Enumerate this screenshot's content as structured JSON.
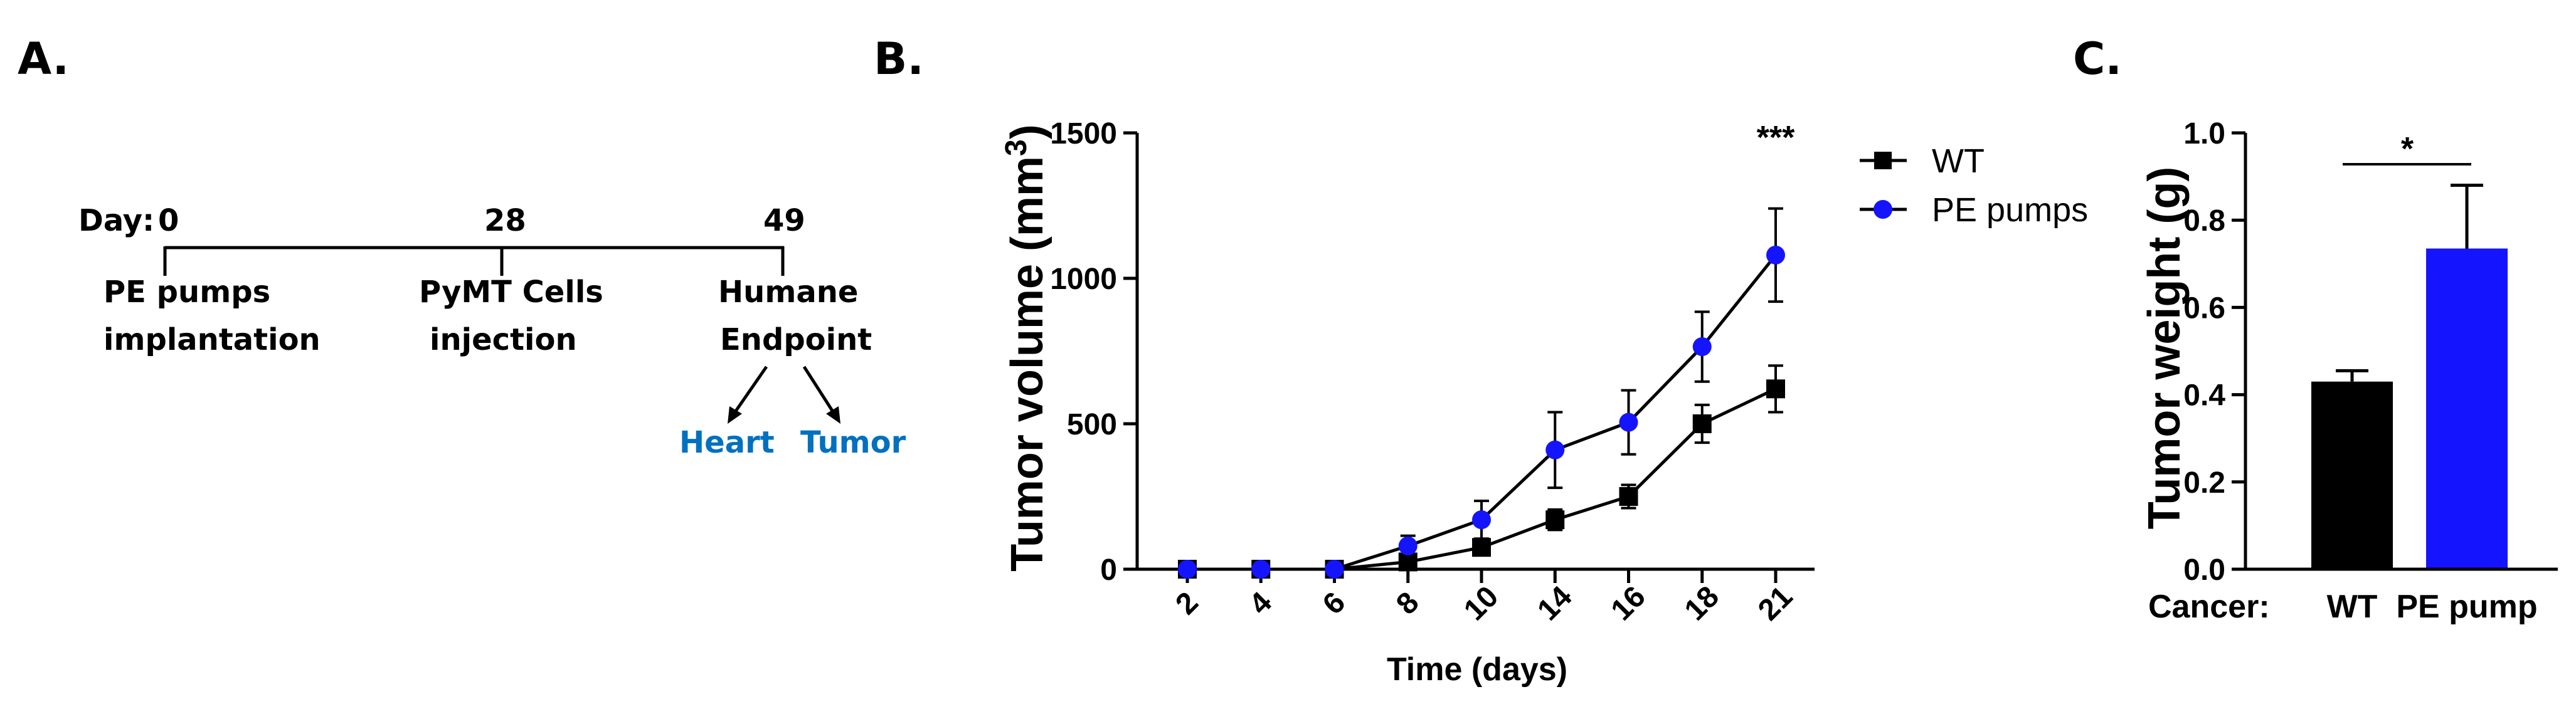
{
  "panel_labels": {
    "a": "A.",
    "b": "B.",
    "c": "C."
  },
  "timeline": {
    "day_label": "Day:",
    "days": [
      "0",
      "28",
      "49"
    ],
    "events": [
      {
        "line1": "PE pumps",
        "line2": "implantation"
      },
      {
        "line1": "PyMT Cells",
        "line2": "injection"
      },
      {
        "line1": "Humane",
        "line2": "Endpoint"
      }
    ],
    "outputs": [
      "Heart",
      "Tumor"
    ],
    "output_color": "#0070C0"
  },
  "chart_data": [
    {
      "type": "line",
      "title": "",
      "xlabel": "Time (days)",
      "ylabel": "Tumor volume (mm",
      "ylabel_sup": "3",
      "ylabel_end": ")",
      "categories": [
        "2",
        "4",
        "6",
        "8",
        "10",
        "14",
        "16",
        "18",
        "21"
      ],
      "ylim": [
        0,
        1500
      ],
      "yticks": [
        "0",
        "500",
        "1000",
        "1500"
      ],
      "series": [
        {
          "name": "WT",
          "color": "#000000",
          "marker": "square",
          "values": [
            0,
            0,
            0,
            25,
            75,
            170,
            250,
            500,
            620
          ],
          "errors": [
            0,
            0,
            0,
            12,
            25,
            35,
            40,
            65,
            80
          ]
        },
        {
          "name": "PE pumps",
          "color": "#1414FF",
          "marker": "circle",
          "values": [
            0,
            0,
            0,
            80,
            170,
            410,
            505,
            765,
            1080
          ],
          "errors": [
            0,
            0,
            0,
            35,
            65,
            130,
            110,
            120,
            160
          ]
        }
      ],
      "significance": "***",
      "legend_position": "top-right"
    },
    {
      "type": "bar",
      "title": "",
      "xlabel": "Cancer:",
      "ylabel": "Tumor weight (g)",
      "categories": [
        "WT",
        "PE pump"
      ],
      "values": [
        0.43,
        0.735
      ],
      "errors": [
        0.025,
        0.145
      ],
      "colors": [
        "#000000",
        "#1414FF"
      ],
      "ylim": [
        0,
        1.0
      ],
      "yticks": [
        "0.0",
        "0.2",
        "0.4",
        "0.6",
        "0.8",
        "1.0"
      ],
      "significance": "*"
    }
  ]
}
